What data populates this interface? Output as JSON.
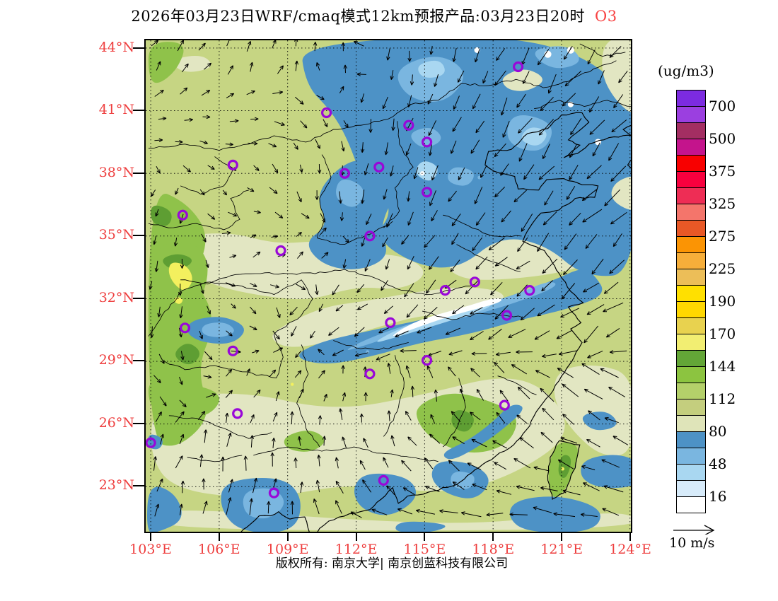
{
  "title": {
    "prefix": "2026年03月23日WRF/cmaq模式12km预报产品:03月23日20时",
    "species": "O3",
    "species_color": "#F84040"
  },
  "colorbar": {
    "unit": "(ug/m3)",
    "tick_labels": [
      "700",
      "500",
      "375",
      "325",
      "275",
      "225",
      "190",
      "170",
      "144",
      "112",
      "80",
      "48",
      "16"
    ],
    "segment_colors": [
      "#7C2BE0",
      "#9B3FE0",
      "#A32E62",
      "#C4148C",
      "#F80000",
      "#F8003E",
      "#EE2D55",
      "#F4756B",
      "#E85826",
      "#FB9404",
      "#F6AE3A",
      "#ECBE58",
      "#FFE000",
      "#FFD700",
      "#E8D24F",
      "#F2EE72",
      "#63A637",
      "#8CC440",
      "#B4D06A",
      "#C4CE7E",
      "#DFE4B9",
      "#4D92C6",
      "#7AB6E0",
      "#A9D7F1",
      "#D7EBFA",
      "#FFFFFF"
    ]
  },
  "axes": {
    "lat_labels": [
      "44°N",
      "41°N",
      "38°N",
      "35°N",
      "32°N",
      "29°N",
      "26°N",
      "23°N"
    ],
    "lat_values": [
      44,
      41,
      38,
      35,
      32,
      29,
      26,
      23
    ],
    "lon_labels": [
      "103°E",
      "106°E",
      "109°E",
      "112°E",
      "115°E",
      "118°E",
      "121°E",
      "124°E"
    ],
    "lon_values": [
      103,
      106,
      109,
      112,
      115,
      118,
      121,
      124
    ],
    "label_color": "#EE3E3E"
  },
  "wind_legend": {
    "label": "10 m/s"
  },
  "footer": {
    "copyright": "版权所有: 南京大学| 南京创蓝科技有限公司"
  },
  "map": {
    "marker_color": "#9908D8",
    "markers": [
      [
        119.1,
        43.1
      ],
      [
        110.7,
        40.9
      ],
      [
        114.3,
        40.3
      ],
      [
        115.1,
        39.5
      ],
      [
        106.6,
        38.4
      ],
      [
        111.5,
        38.0
      ],
      [
        113.0,
        38.3
      ],
      [
        115.1,
        37.1
      ],
      [
        104.4,
        36.0
      ],
      [
        112.6,
        35.0
      ],
      [
        108.7,
        34.3
      ],
      [
        115.9,
        32.4
      ],
      [
        117.2,
        32.8
      ],
      [
        119.6,
        32.4
      ],
      [
        118.6,
        31.2
      ],
      [
        113.5,
        30.85
      ],
      [
        104.5,
        30.6
      ],
      [
        106.6,
        29.5
      ],
      [
        115.1,
        29.05
      ],
      [
        112.6,
        28.4
      ],
      [
        106.8,
        26.5
      ],
      [
        103.0,
        25.1
      ],
      [
        108.4,
        22.7
      ],
      [
        113.2,
        23.3
      ],
      [
        118.5,
        26.9
      ]
    ]
  }
}
